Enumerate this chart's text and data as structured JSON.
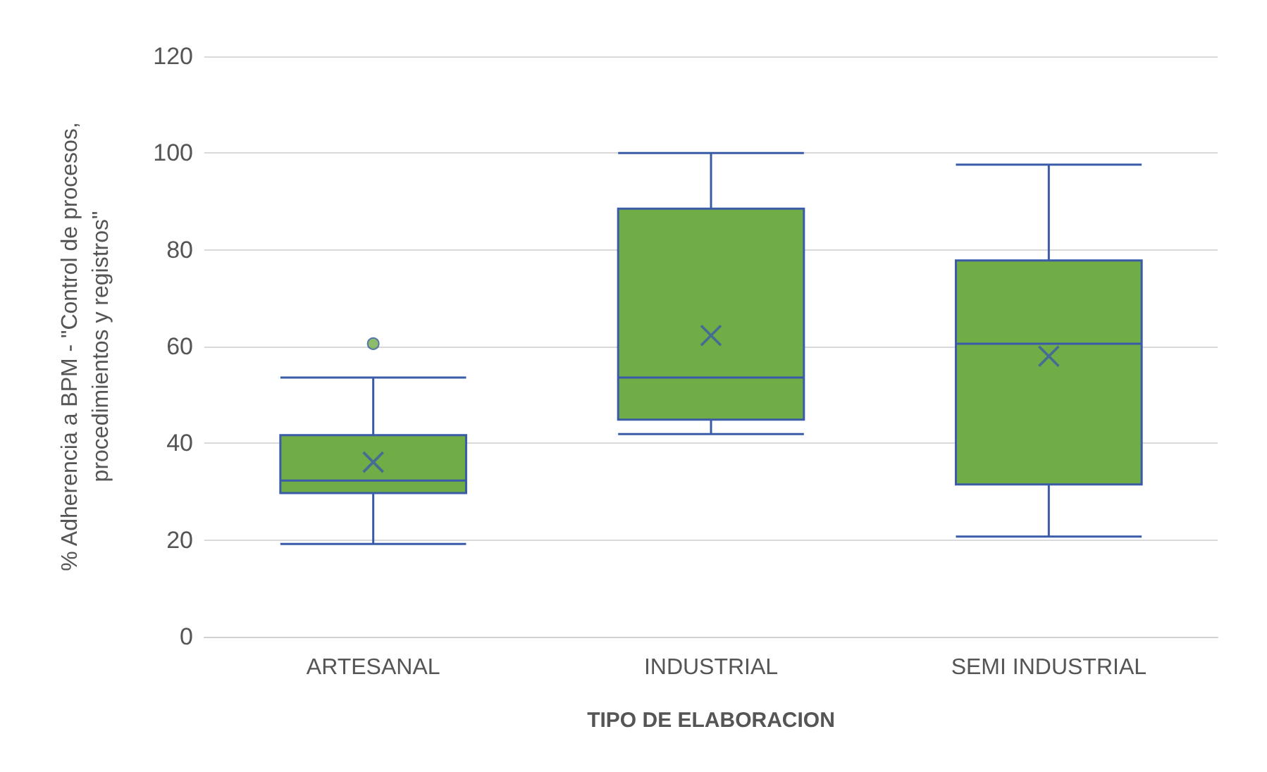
{
  "chart_data": {
    "type": "box",
    "xlabel": "TIPO DE ELABORACION",
    "ylabel": "% Adherencia a BPM - \"Control de procesos,\nprocedimientos y registros\"",
    "categories": [
      "ARTESANAL",
      "INDUSTRIAL",
      "SEMI INDUSTRIAL"
    ],
    "series": [
      {
        "color": "#70ad47",
        "boxes": [
          {
            "low": 19.2,
            "q1": 29.7,
            "median": 32.3,
            "q3": 41.7,
            "high": 53.6,
            "mean": 36.1,
            "outliers": [
              60.6
            ]
          },
          {
            "low": 41.9,
            "q1": 44.9,
            "median": 53.6,
            "q3": 88.5,
            "high": 100,
            "mean": 62.3
          },
          {
            "low": 20.7,
            "q1": 31.5,
            "median": 60.6,
            "q3": 77.8,
            "high": 97.6,
            "mean": 58
          }
        ]
      }
    ],
    "ylim": [
      0,
      120
    ],
    "yticks": [
      0,
      20,
      40,
      60,
      80,
      100,
      120
    ],
    "grid": "y"
  }
}
